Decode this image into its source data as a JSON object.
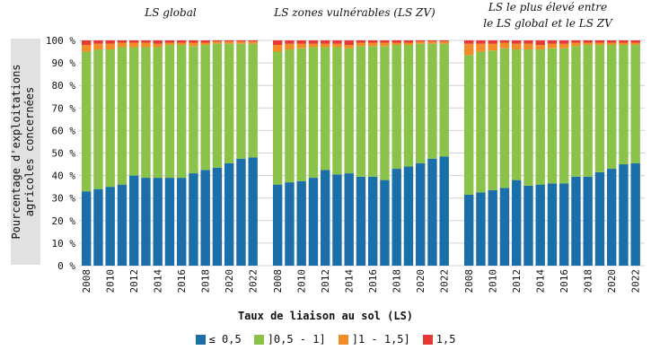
{
  "chart_data": {
    "type": "bar",
    "stacked": true,
    "ylabel_lines": [
      "Pourcentage d'exploitations",
      "agricoles concernées"
    ],
    "xlabel": "Taux de liaison au sol (LS)",
    "yticks": [
      "0 %",
      "10 %",
      "20 %",
      "30 %",
      "40 %",
      "50 %",
      "60 %",
      "70 %",
      "80 %",
      "90 %",
      "100 %"
    ],
    "ylim": [
      0,
      100
    ],
    "grid": true,
    "legend_position": "bottom",
    "series_meta": [
      {
        "name": "≤ 0,5",
        "color": "#1a6fa8"
      },
      {
        "name": "]0,5 - 1]",
        "color": "#8bc34a"
      },
      {
        "name": "]1 - 1,5]",
        "color": "#f28c28"
      },
      {
        "name": "1,5",
        "color": "#e53935"
      }
    ],
    "categories": [
      "2008",
      "2009",
      "2010",
      "2011",
      "2012",
      "2013",
      "2014",
      "2015",
      "2016",
      "2017",
      "2018",
      "2019",
      "2020",
      "2021",
      "2022"
    ],
    "panels": [
      {
        "title_lines": [
          "LS global"
        ],
        "series": [
          [
            33,
            34,
            35,
            36,
            40,
            39,
            39,
            39,
            39,
            41,
            42.5,
            43.5,
            45.5,
            47.5,
            48
          ],
          [
            62,
            62,
            61,
            61,
            57,
            58,
            58,
            59,
            59,
            56.5,
            55.5,
            55,
            53,
            51,
            50.5
          ],
          [
            3,
            2.5,
            2.5,
            2,
            2,
            2,
            1.5,
            1,
            1,
            1.5,
            1,
            1,
            1,
            1,
            1
          ],
          [
            2,
            1.5,
            1.5,
            1,
            1,
            1,
            1.5,
            1,
            1,
            1,
            1,
            0.5,
            0.5,
            0.5,
            0.5
          ]
        ]
      },
      {
        "title_lines": [
          "LS zones vulnérables (LS ZV)"
        ],
        "series": [
          [
            36,
            37,
            37.5,
            39,
            42.5,
            40.5,
            41,
            39.5,
            39.5,
            38,
            43,
            44,
            45.5,
            47.5,
            48.5
          ],
          [
            59,
            59,
            59,
            58,
            54.5,
            56.5,
            55.5,
            58,
            58,
            59.5,
            55,
            54,
            53,
            51,
            50
          ],
          [
            3,
            2.5,
            2,
            1.5,
            1.5,
            1.5,
            1.5,
            1.5,
            1.5,
            1.5,
            1,
            1,
            1,
            1,
            1
          ],
          [
            2,
            1.5,
            1.5,
            1.5,
            1.5,
            1.5,
            2,
            1,
            1,
            1,
            1,
            1,
            0.5,
            0.5,
            0.5
          ]
        ]
      },
      {
        "title_lines": [
          "LS le plus élevé entre",
          "le LS global et le LS ZV"
        ],
        "series": [
          [
            31.5,
            32.5,
            33.5,
            34.5,
            38,
            35.5,
            36,
            36.5,
            36.5,
            39.5,
            39.5,
            41.5,
            43,
            45,
            45.5
          ],
          [
            62,
            62.5,
            62,
            62,
            58,
            60.5,
            60,
            60,
            60,
            58,
            58.5,
            56.5,
            55,
            53,
            52.5
          ],
          [
            5,
            3.5,
            3,
            2.5,
            2.5,
            2.5,
            2,
            2,
            2,
            1.5,
            1,
            1,
            1,
            1,
            1
          ],
          [
            1.5,
            1.5,
            1.5,
            1,
            1.5,
            1.5,
            2,
            1.5,
            1.5,
            1,
            1,
            1,
            1,
            1,
            1
          ]
        ]
      }
    ]
  }
}
